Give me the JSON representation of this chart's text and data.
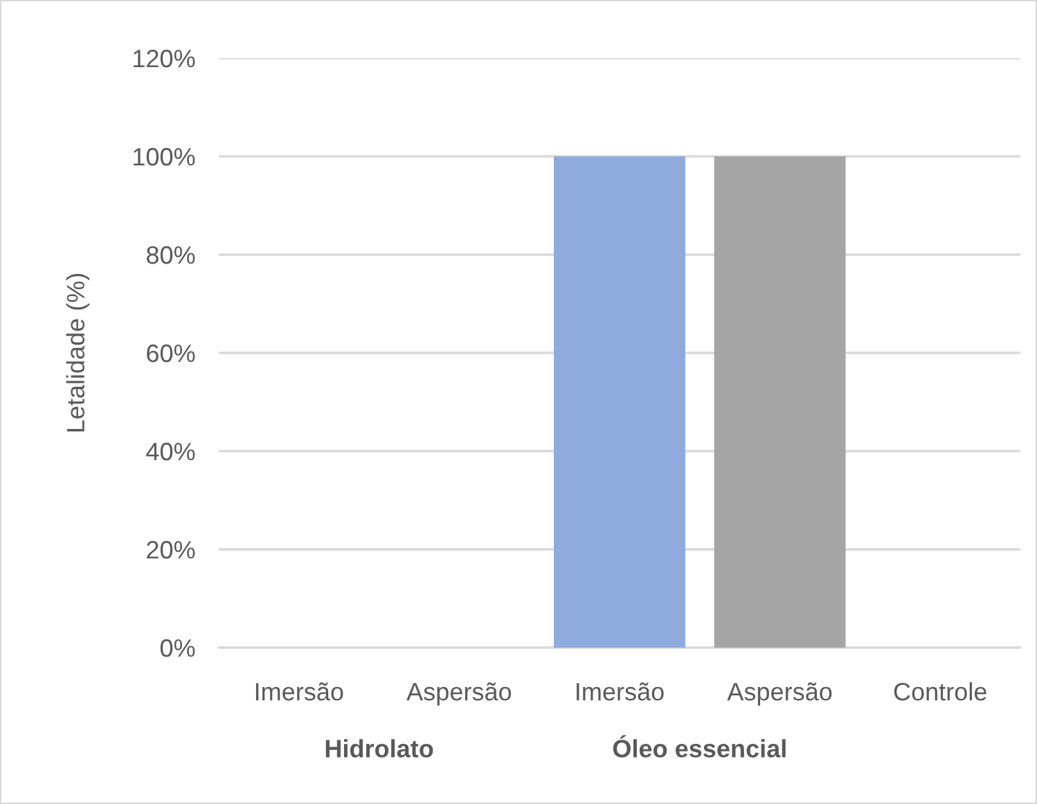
{
  "chart_data": {
    "type": "bar",
    "ylabel": "Letalidade (%)",
    "categories": [
      "Imersão",
      "Aspersão",
      "Imersão",
      "Aspersão",
      "Controle"
    ],
    "values": [
      0,
      0,
      100,
      100,
      0
    ],
    "colors": [
      "#8faadc",
      "#a5a5a5",
      "#8faadc",
      "#a5a5a5",
      "#8faadc"
    ],
    "ylim": [
      0,
      120
    ],
    "yticks": [
      {
        "value": 0,
        "label": "0%"
      },
      {
        "value": 20,
        "label": "20%"
      },
      {
        "value": 40,
        "label": "40%"
      },
      {
        "value": 60,
        "label": "60%"
      },
      {
        "value": 80,
        "label": "80%"
      },
      {
        "value": 100,
        "label": "100%"
      },
      {
        "value": 120,
        "label": "120%"
      }
    ],
    "grid": "y",
    "annotations": [
      "Hidrolato",
      "Óleo essencial"
    ]
  }
}
